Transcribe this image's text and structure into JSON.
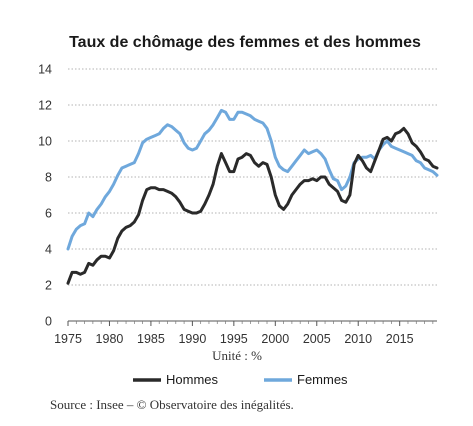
{
  "chart_data": {
    "type": "line",
    "title": "Taux de chômage des femmes et des hommes",
    "xlabel": "Unité : %",
    "ylabel": "",
    "xlim": [
      1975,
      2019.5
    ],
    "ylim": [
      0,
      14
    ],
    "xticks": [
      1975,
      1980,
      1985,
      1990,
      1995,
      2000,
      2005,
      2010,
      2015
    ],
    "yticks": [
      0,
      2,
      4,
      6,
      8,
      10,
      12,
      14
    ],
    "grid": "horizontal dotted",
    "legend": "bottom",
    "series": [
      {
        "name": "Hommes",
        "color": "#2a2a2a",
        "x": [
          1975,
          1975.5,
          1976,
          1976.5,
          1977,
          1977.5,
          1978,
          1978.5,
          1979,
          1979.5,
          1980,
          1980.5,
          1981,
          1981.5,
          1982,
          1982.5,
          1983,
          1983.5,
          1984,
          1984.5,
          1985,
          1985.5,
          1986,
          1986.5,
          1987,
          1987.5,
          1988,
          1988.5,
          1989,
          1989.5,
          1990,
          1990.5,
          1991,
          1991.5,
          1992,
          1992.5,
          1993,
          1993.5,
          1994,
          1994.5,
          1995,
          1995.5,
          1996,
          1996.5,
          1997,
          1997.5,
          1998,
          1998.5,
          1999,
          1999.5,
          2000,
          2000.5,
          2001,
          2001.5,
          2002,
          2002.5,
          2003,
          2003.5,
          2004,
          2004.5,
          2005,
          2005.5,
          2006,
          2006.5,
          2007,
          2007.5,
          2008,
          2008.5,
          2009,
          2009.5,
          2010,
          2010.5,
          2011,
          2011.5,
          2012,
          2012.5,
          2013,
          2013.5,
          2014,
          2014.5,
          2015,
          2015.5,
          2016,
          2016.5,
          2017,
          2017.5,
          2018,
          2018.5,
          2019,
          2019.5
        ],
        "values": [
          2.1,
          2.7,
          2.7,
          2.6,
          2.7,
          3.2,
          3.1,
          3.4,
          3.6,
          3.6,
          3.5,
          3.9,
          4.6,
          5.0,
          5.2,
          5.3,
          5.5,
          5.9,
          6.7,
          7.3,
          7.4,
          7.4,
          7.3,
          7.3,
          7.2,
          7.1,
          6.9,
          6.6,
          6.2,
          6.1,
          6.0,
          6.0,
          6.1,
          6.5,
          7.0,
          7.6,
          8.6,
          9.3,
          8.8,
          8.3,
          8.3,
          9.0,
          9.1,
          9.3,
          9.2,
          8.8,
          8.6,
          8.8,
          8.7,
          8.0,
          7.0,
          6.4,
          6.2,
          6.5,
          7.0,
          7.3,
          7.6,
          7.8,
          7.8,
          7.9,
          7.8,
          8.0,
          8.0,
          7.6,
          7.4,
          7.2,
          6.7,
          6.6,
          7.0,
          8.7,
          9.2,
          8.9,
          8.5,
          8.3,
          8.9,
          9.5,
          10.1,
          10.2,
          10.0,
          10.4,
          10.5,
          10.7,
          10.4,
          9.9,
          9.7,
          9.4,
          9.0,
          8.9,
          8.6,
          8.5
        ]
      },
      {
        "name": "Femmes",
        "color": "#6fa8dc",
        "x": [
          1975,
          1975.5,
          1976,
          1976.5,
          1977,
          1977.5,
          1978,
          1978.5,
          1979,
          1979.5,
          1980,
          1980.5,
          1981,
          1981.5,
          1982,
          1982.5,
          1983,
          1983.5,
          1984,
          1984.5,
          1985,
          1985.5,
          1986,
          1986.5,
          1987,
          1987.5,
          1988,
          1988.5,
          1989,
          1989.5,
          1990,
          1990.5,
          1991,
          1991.5,
          1992,
          1992.5,
          1993,
          1993.5,
          1994,
          1994.5,
          1995,
          1995.5,
          1996,
          1996.5,
          1997,
          1997.5,
          1998,
          1998.5,
          1999,
          1999.5,
          2000,
          2000.5,
          2001,
          2001.5,
          2002,
          2002.5,
          2003,
          2003.5,
          2004,
          2004.5,
          2005,
          2005.5,
          2006,
          2006.5,
          2007,
          2007.5,
          2008,
          2008.5,
          2009,
          2009.5,
          2010,
          2010.5,
          2011,
          2011.5,
          2012,
          2012.5,
          2013,
          2013.5,
          2014,
          2014.5,
          2015,
          2015.5,
          2016,
          2016.5,
          2017,
          2017.5,
          2018,
          2018.5,
          2019,
          2019.5
        ],
        "values": [
          4.0,
          4.7,
          5.1,
          5.3,
          5.4,
          6.0,
          5.8,
          6.2,
          6.5,
          6.9,
          7.2,
          7.6,
          8.1,
          8.5,
          8.6,
          8.7,
          8.8,
          9.3,
          9.9,
          10.1,
          10.2,
          10.3,
          10.4,
          10.7,
          10.9,
          10.8,
          10.6,
          10.4,
          9.9,
          9.6,
          9.5,
          9.6,
          10.0,
          10.4,
          10.6,
          10.9,
          11.3,
          11.7,
          11.6,
          11.2,
          11.2,
          11.6,
          11.6,
          11.5,
          11.4,
          11.2,
          11.1,
          11.0,
          10.7,
          10.0,
          9.1,
          8.6,
          8.4,
          8.3,
          8.6,
          8.9,
          9.2,
          9.5,
          9.3,
          9.4,
          9.5,
          9.3,
          9.0,
          8.4,
          7.9,
          7.8,
          7.3,
          7.5,
          8.0,
          8.8,
          9.0,
          9.1,
          9.1,
          9.2,
          9.0,
          9.5,
          9.8,
          10.0,
          9.7,
          9.6,
          9.5,
          9.4,
          9.3,
          9.2,
          8.9,
          8.8,
          8.5,
          8.4,
          8.3,
          8.1
        ]
      }
    ],
    "source": "Source : Insee – © Observatoire des inégalités."
  }
}
